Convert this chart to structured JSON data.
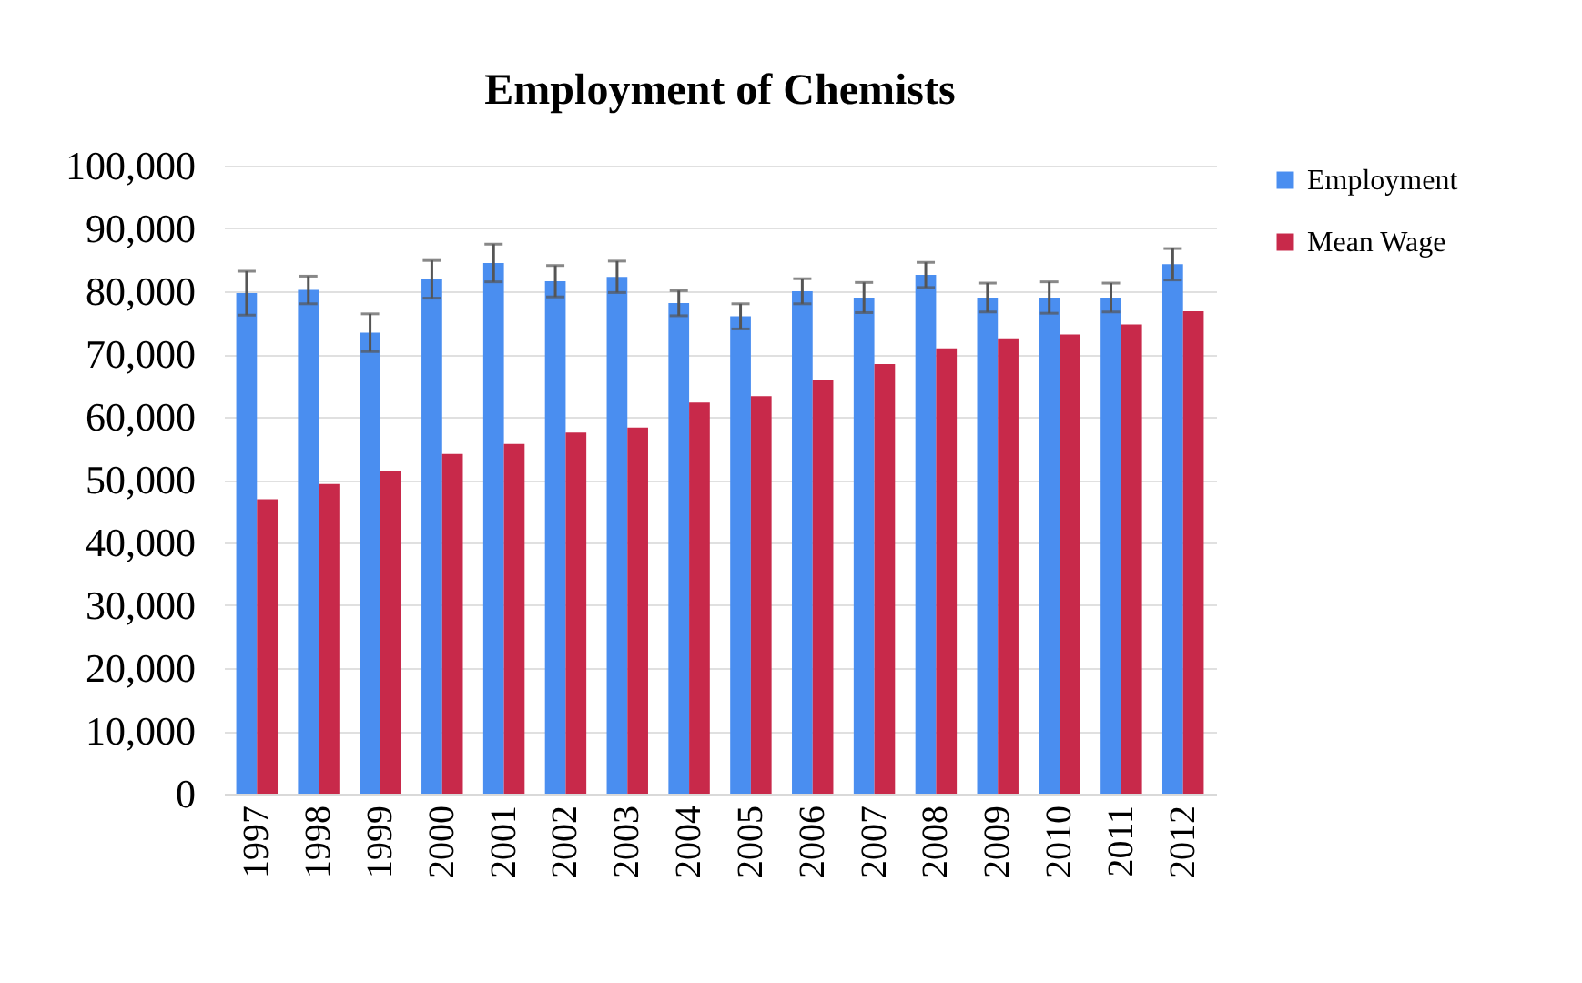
{
  "chart_data": {
    "type": "bar",
    "title": "Employment of Chemists",
    "categories": [
      "1997",
      "1998",
      "1999",
      "2000",
      "2001",
      "2002",
      "2003",
      "2004",
      "2005",
      "2006",
      "2007",
      "2008",
      "2009",
      "2010",
      "2011",
      "2012"
    ],
    "series": [
      {
        "name": "Employment",
        "color": "#4a8ef0",
        "values": [
          79700,
          80200,
          73400,
          81900,
          84500,
          81600,
          82300,
          78100,
          76000,
          80000,
          79000,
          82600,
          79000,
          79000,
          79000,
          84300
        ],
        "errors": [
          3500,
          2200,
          3000,
          3000,
          3000,
          2500,
          2500,
          2000,
          2000,
          2000,
          2400,
          2000,
          2300,
          2500,
          2300,
          2500
        ]
      },
      {
        "name": "Mean Wage",
        "color": "#c8294a",
        "values": [
          46900,
          49300,
          51400,
          54100,
          55700,
          57500,
          58300,
          62300,
          63300,
          65900,
          68400,
          70900,
          72500,
          73100,
          74700,
          76800
        ]
      }
    ],
    "ylim": [
      0,
      100000
    ],
    "yticks": [
      0,
      {
        "value": 10000,
        "label": "10,000"
      },
      {
        "value": 20000,
        "label": "20,000"
      },
      {
        "value": 30000,
        "label": "30,000"
      },
      {
        "value": 40000,
        "label": "40,000"
      },
      {
        "value": 50000,
        "label": "50,000"
      },
      {
        "value": 60000,
        "label": "60,000"
      },
      {
        "value": 70000,
        "label": "70,000"
      },
      {
        "value": 80000,
        "label": "80,000"
      },
      {
        "value": 90000,
        "label": "90,000"
      },
      {
        "value": 100000,
        "label": "100,000"
      }
    ],
    "grid": "y",
    "legend": "right"
  }
}
